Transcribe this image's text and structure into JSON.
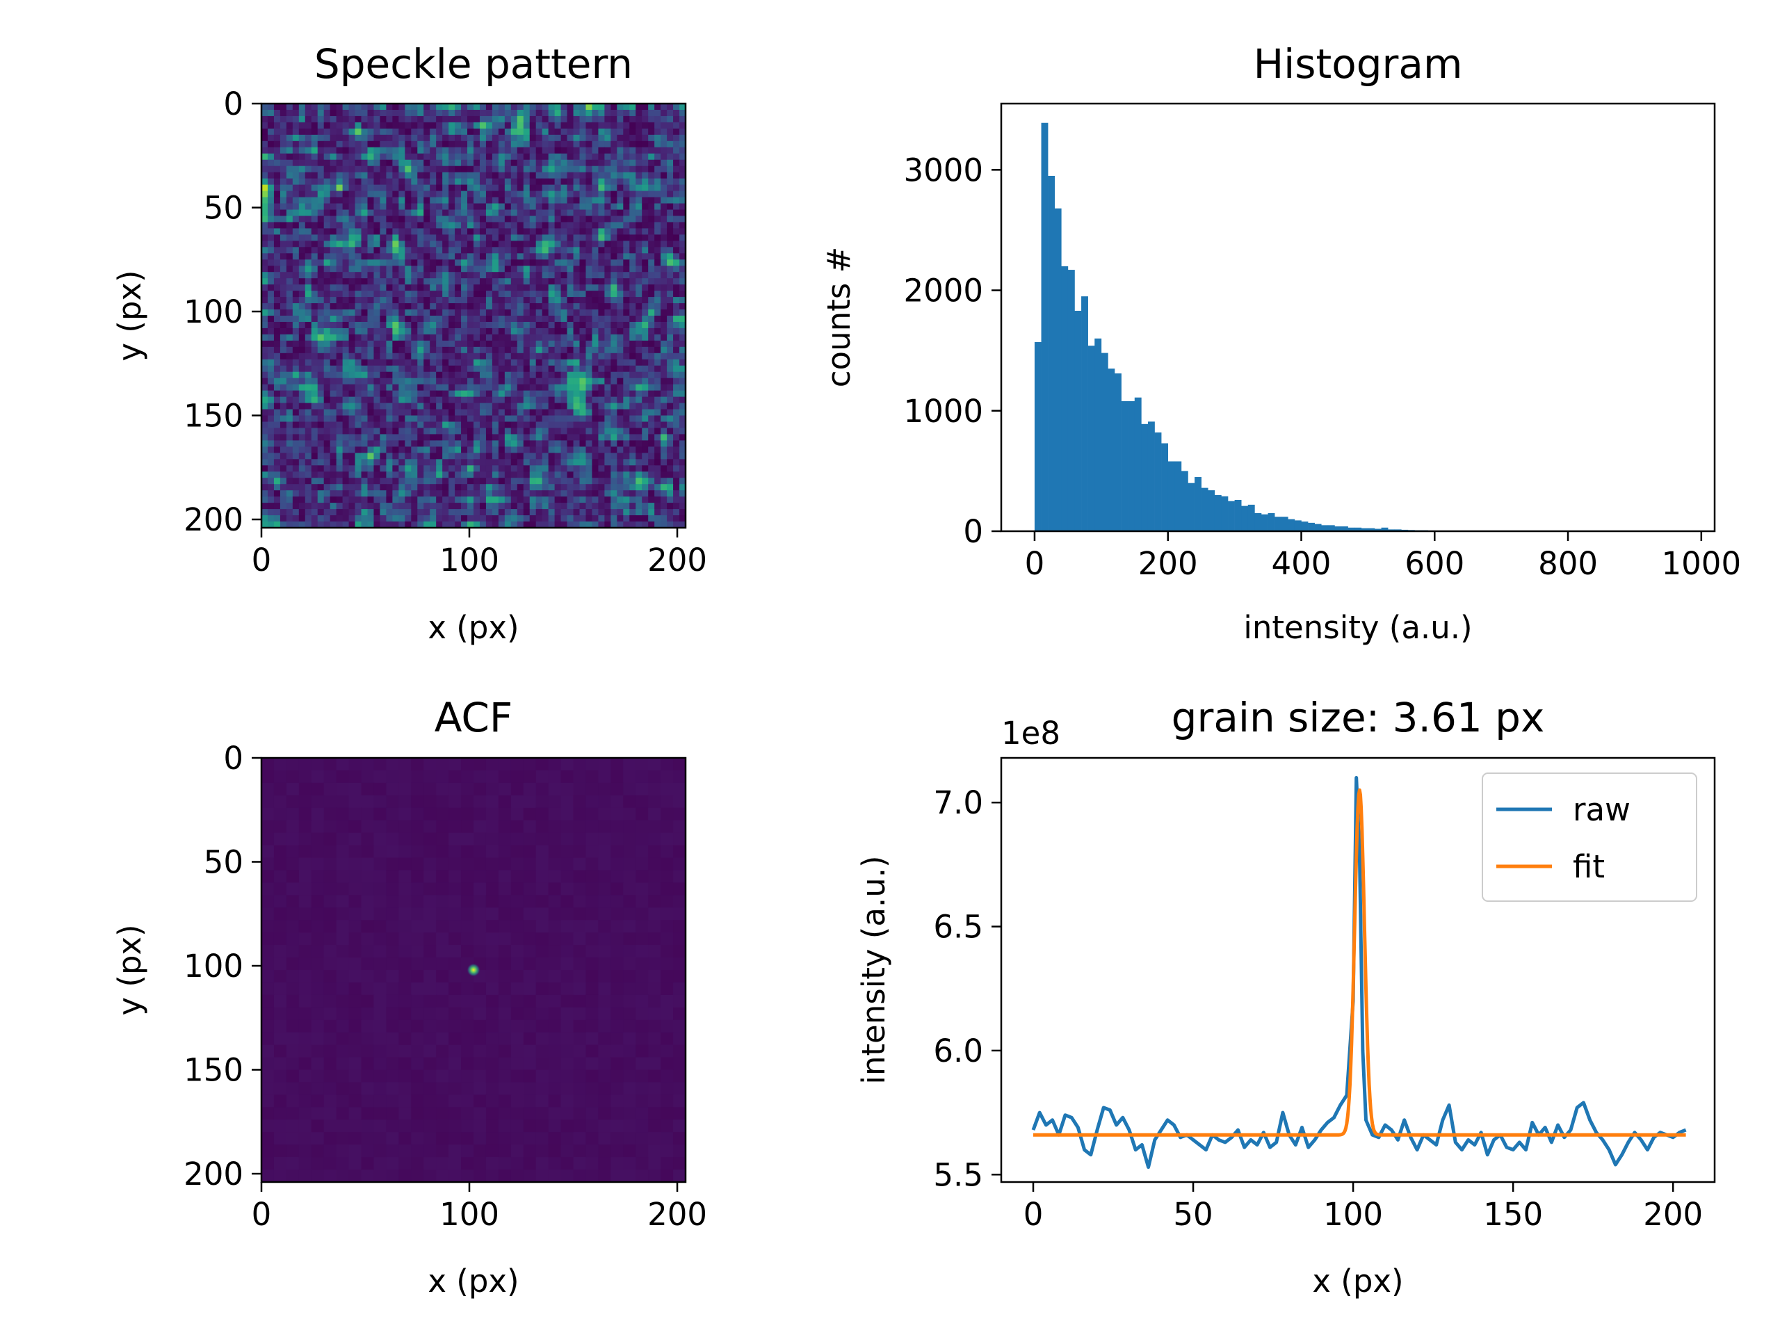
{
  "figure": {
    "panels": [
      {
        "id": "speckle",
        "title": "Speckle pattern",
        "xlabel": "x (px)",
        "ylabel": "y (px)",
        "xticks": [
          0,
          100,
          200
        ],
        "yticks": [
          0,
          50,
          100,
          150,
          200
        ],
        "colormap": "viridis"
      },
      {
        "id": "histogram",
        "title": "Histogram",
        "xlabel": "intensity (a.u.)",
        "ylabel": "counts #",
        "xticks": [
          0,
          200,
          400,
          600,
          800,
          1000
        ],
        "yticks": [
          0,
          1000,
          2000,
          3000
        ]
      },
      {
        "id": "acf",
        "title": "ACF",
        "xlabel": "x (px)",
        "ylabel": "y (px)",
        "xticks": [
          0,
          100,
          200
        ],
        "yticks": [
          0,
          50,
          100,
          150,
          200
        ],
        "colormap": "viridis"
      },
      {
        "id": "profile",
        "title": "grain size: 3.61 px",
        "xlabel": "x (px)",
        "ylabel": "intensity (a.u.)",
        "offset_text": "1e8",
        "xticks": [
          0,
          50,
          100,
          150,
          200
        ],
        "yticks": [
          "5.5",
          "6.0",
          "6.5",
          "7.0"
        ],
        "legend": [
          "raw",
          "fit"
        ]
      }
    ]
  },
  "chart_data": [
    {
      "type": "heatmap",
      "title": "Speckle pattern",
      "xlabel": "x (px)",
      "ylabel": "y (px)",
      "xlim": [
        0,
        204
      ],
      "ylim": [
        204,
        0
      ],
      "colormap": "viridis"
    },
    {
      "type": "bar",
      "title": "Histogram",
      "xlabel": "intensity (a.u.)",
      "ylabel": "counts #",
      "xlim": [
        -50,
        1020
      ],
      "ylim": [
        0,
        3550
      ],
      "color": "#1f77b4",
      "bin_width": 10,
      "bin_starts": [
        0,
        10,
        20,
        30,
        40,
        50,
        60,
        70,
        80,
        90,
        100,
        110,
        120,
        130,
        140,
        150,
        160,
        170,
        180,
        190,
        200,
        210,
        220,
        230,
        240,
        250,
        260,
        270,
        280,
        290,
        300,
        310,
        320,
        330,
        340,
        350,
        360,
        370,
        380,
        390,
        400,
        410,
        420,
        430,
        440,
        450,
        460,
        470,
        480,
        490,
        500,
        510,
        520,
        530,
        540,
        550,
        560,
        570,
        580,
        590,
        600,
        620,
        640,
        660,
        680,
        700
      ],
      "values": [
        1570,
        3390,
        2950,
        2680,
        2200,
        2170,
        1830,
        1950,
        1540,
        1600,
        1480,
        1350,
        1310,
        1080,
        1080,
        1110,
        890,
        910,
        820,
        730,
        580,
        580,
        500,
        400,
        450,
        360,
        340,
        300,
        290,
        250,
        260,
        210,
        220,
        150,
        140,
        150,
        120,
        120,
        100,
        90,
        80,
        70,
        60,
        50,
        50,
        40,
        40,
        30,
        30,
        25,
        25,
        20,
        30,
        15,
        15,
        12,
        10,
        8,
        8,
        6,
        5,
        4,
        3,
        4,
        2,
        1
      ]
    },
    {
      "type": "heatmap",
      "title": "ACF",
      "xlabel": "x (px)",
      "ylabel": "y (px)",
      "xlim": [
        0,
        204
      ],
      "ylim": [
        204,
        0
      ],
      "colormap": "viridis",
      "peak": [
        102,
        102
      ]
    },
    {
      "type": "line",
      "title": "grain size: 3.61 px",
      "xlabel": "x (px)",
      "ylabel": "intensity (a.u.)",
      "y_scale_factor": "1e8",
      "xlim": [
        -10,
        213
      ],
      "ylim": [
        5.47,
        7.18
      ],
      "series": [
        {
          "name": "raw",
          "color": "#1f77b4",
          "x": [
            0,
            2,
            4,
            6,
            8,
            10,
            12,
            14,
            16,
            18,
            20,
            22,
            24,
            26,
            28,
            30,
            32,
            34,
            36,
            38,
            40,
            42,
            44,
            46,
            48,
            50,
            52,
            54,
            56,
            58,
            60,
            62,
            64,
            66,
            68,
            70,
            72,
            74,
            76,
            78,
            80,
            82,
            84,
            86,
            88,
            90,
            92,
            94,
            96,
            98,
            100,
            101,
            102,
            103,
            104,
            106,
            108,
            110,
            112,
            114,
            116,
            118,
            120,
            122,
            124,
            126,
            128,
            130,
            132,
            134,
            136,
            138,
            140,
            142,
            144,
            146,
            148,
            150,
            152,
            154,
            156,
            158,
            160,
            162,
            164,
            166,
            168,
            170,
            172,
            174,
            176,
            178,
            180,
            182,
            184,
            186,
            188,
            190,
            192,
            194,
            196,
            198,
            200,
            202,
            204
          ],
          "values": [
            5.68,
            5.75,
            5.7,
            5.72,
            5.66,
            5.74,
            5.73,
            5.69,
            5.6,
            5.58,
            5.68,
            5.77,
            5.76,
            5.7,
            5.73,
            5.68,
            5.6,
            5.62,
            5.53,
            5.64,
            5.68,
            5.72,
            5.7,
            5.65,
            5.66,
            5.64,
            5.62,
            5.6,
            5.66,
            5.64,
            5.63,
            5.65,
            5.68,
            5.61,
            5.64,
            5.62,
            5.67,
            5.61,
            5.63,
            5.75,
            5.66,
            5.62,
            5.69,
            5.61,
            5.64,
            5.68,
            5.71,
            5.73,
            5.78,
            5.82,
            6.2,
            7.1,
            6.8,
            6.0,
            5.72,
            5.66,
            5.65,
            5.7,
            5.68,
            5.64,
            5.72,
            5.65,
            5.6,
            5.66,
            5.64,
            5.62,
            5.72,
            5.78,
            5.63,
            5.6,
            5.64,
            5.62,
            5.67,
            5.58,
            5.64,
            5.66,
            5.61,
            5.6,
            5.63,
            5.6,
            5.71,
            5.66,
            5.69,
            5.63,
            5.7,
            5.65,
            5.68,
            5.77,
            5.79,
            5.72,
            5.67,
            5.64,
            5.6,
            5.54,
            5.58,
            5.63,
            5.67,
            5.64,
            5.6,
            5.65,
            5.67,
            5.66,
            5.65,
            5.67,
            5.68
          ]
        },
        {
          "name": "fit",
          "color": "#ff7f0e",
          "baseline": 5.66,
          "amplitude": 1.39,
          "center": 102,
          "sigma": 1.53
        }
      ]
    }
  ]
}
